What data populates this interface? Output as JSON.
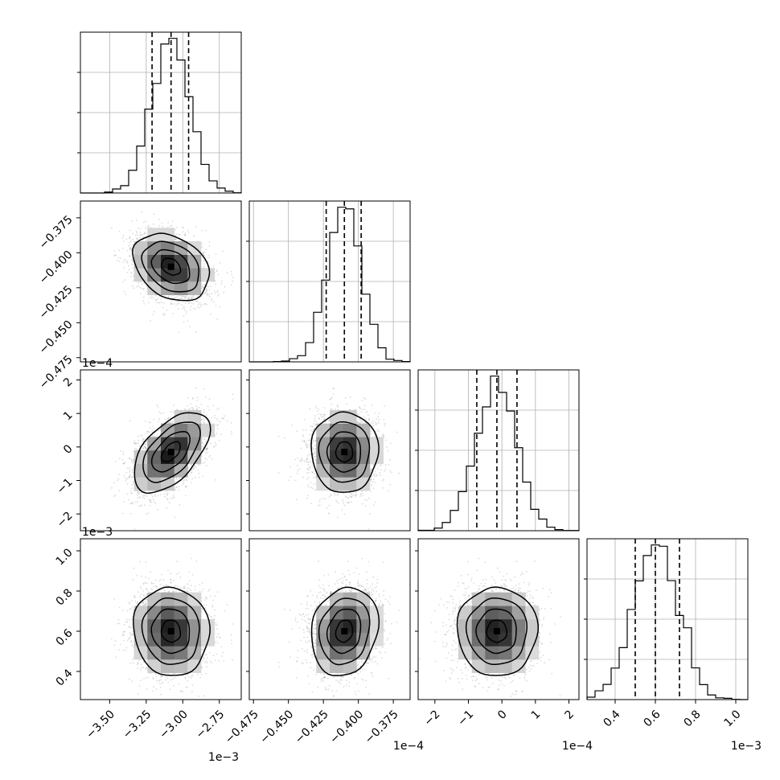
{
  "chart_data": {
    "type": "corner",
    "parameters": [
      {
        "key": "p0",
        "range": [
          -3.7,
          -2.6
        ],
        "ticks": [
          -3.5,
          -3.25,
          -3.0,
          -2.75
        ],
        "tick_labels": [
          "−3.50",
          "−3.25",
          "−3.00",
          "−2.75"
        ],
        "scale_label": "1e−3",
        "quantiles": [
          -3.21,
          -3.08,
          -2.96
        ],
        "mean": -3.08,
        "sd": 0.13
      },
      {
        "key": "p1",
        "range": [
          -0.478,
          -0.363
        ],
        "ticks": [
          -0.475,
          -0.45,
          -0.425,
          -0.4,
          -0.375
        ],
        "tick_labels": [
          "−0.475",
          "−0.450",
          "−0.425",
          "−0.400",
          "−0.375"
        ],
        "scale_label": "1e−4",
        "quantiles": [
          -0.423,
          -0.41,
          -0.398
        ],
        "mean": -0.41,
        "sd": 0.012
      },
      {
        "key": "p2",
        "range": [
          -2.5,
          2.3
        ],
        "ticks": [
          -2,
          -1,
          0,
          1,
          2
        ],
        "tick_labels": [
          "−2",
          "−1",
          "0",
          "1",
          "2"
        ],
        "scale_label": "1e−4",
        "quantiles": [
          -0.75,
          -0.15,
          0.45
        ],
        "mean": -0.15,
        "sd": 0.6
      },
      {
        "key": "p3",
        "range": [
          0.26,
          1.06
        ],
        "ticks": [
          0.4,
          0.6,
          0.8,
          1.0
        ],
        "tick_labels": [
          "0.4",
          "0.6",
          "0.8",
          "1.0"
        ],
        "scale_label": "1e−3",
        "quantiles": [
          0.5,
          0.6,
          0.72
        ],
        "mean": 0.6,
        "sd": 0.11
      }
    ],
    "correlations": [
      [
        1,
        0,
        0,
        0
      ],
      [
        -0.3,
        1,
        0,
        0
      ],
      [
        0.55,
        0,
        1,
        0
      ],
      [
        -0.05,
        0.15,
        0.0,
        1
      ]
    ],
    "histogram_bins": 20,
    "grid": true,
    "contour_levels": 4
  },
  "colors": {
    "line": "#000000",
    "grid": "#b0b0b0",
    "scatter": "#9a9a9a"
  }
}
